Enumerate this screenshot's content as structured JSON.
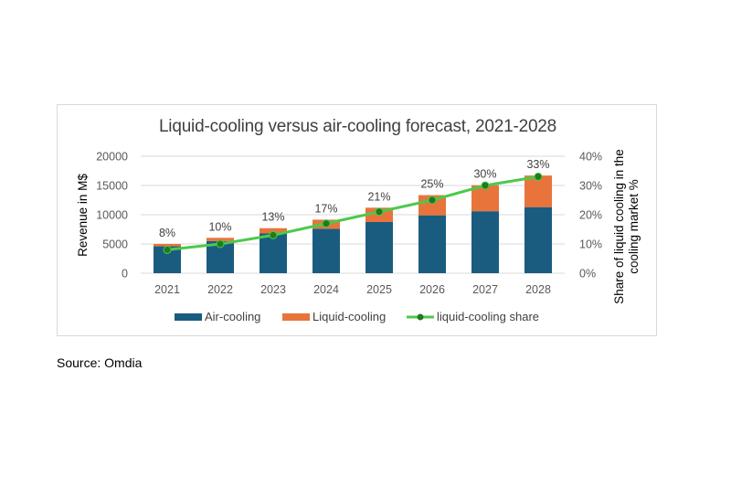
{
  "source_note": "Source: Omdia",
  "chart_data": {
    "type": "bar",
    "stacked": true,
    "title": "Liquid-cooling versus air-cooling forecast, 2021-2028",
    "categories": [
      "2021",
      "2022",
      "2023",
      "2024",
      "2025",
      "2026",
      "2027",
      "2028"
    ],
    "series": [
      {
        "name": "Air-cooling",
        "type": "bar",
        "axis": "left",
        "color": "#1a5c80",
        "values": [
          4600,
          5500,
          6800,
          7600,
          8750,
          9900,
          10600,
          11300
        ]
      },
      {
        "name": "Liquid-cooling",
        "type": "bar",
        "axis": "left",
        "color": "#e8743b",
        "values": [
          400,
          550,
          900,
          1550,
          2450,
          3450,
          4450,
          5400
        ]
      },
      {
        "name": "liquid-cooling share",
        "type": "line",
        "axis": "right",
        "color": "#4cc94c",
        "marker_color": "#1e7b1e",
        "values": [
          8,
          10,
          13,
          17,
          21,
          25,
          30,
          33
        ],
        "labels": [
          "8%",
          "10%",
          "13%",
          "17%",
          "21%",
          "25%",
          "30%",
          "33%"
        ]
      }
    ],
    "xlabel": "",
    "ylabel": "Revenue in M$",
    "y2label": "Share of liquid cooling in the cooling market %",
    "ylim": [
      0,
      20000
    ],
    "yticks": [
      "0",
      "5000",
      "10000",
      "15000",
      "20000"
    ],
    "y2lim": [
      0,
      40
    ],
    "y2ticks": [
      "0%",
      "10%",
      "20%",
      "30%",
      "40%"
    ],
    "grid": true,
    "legend_position": "bottom"
  }
}
